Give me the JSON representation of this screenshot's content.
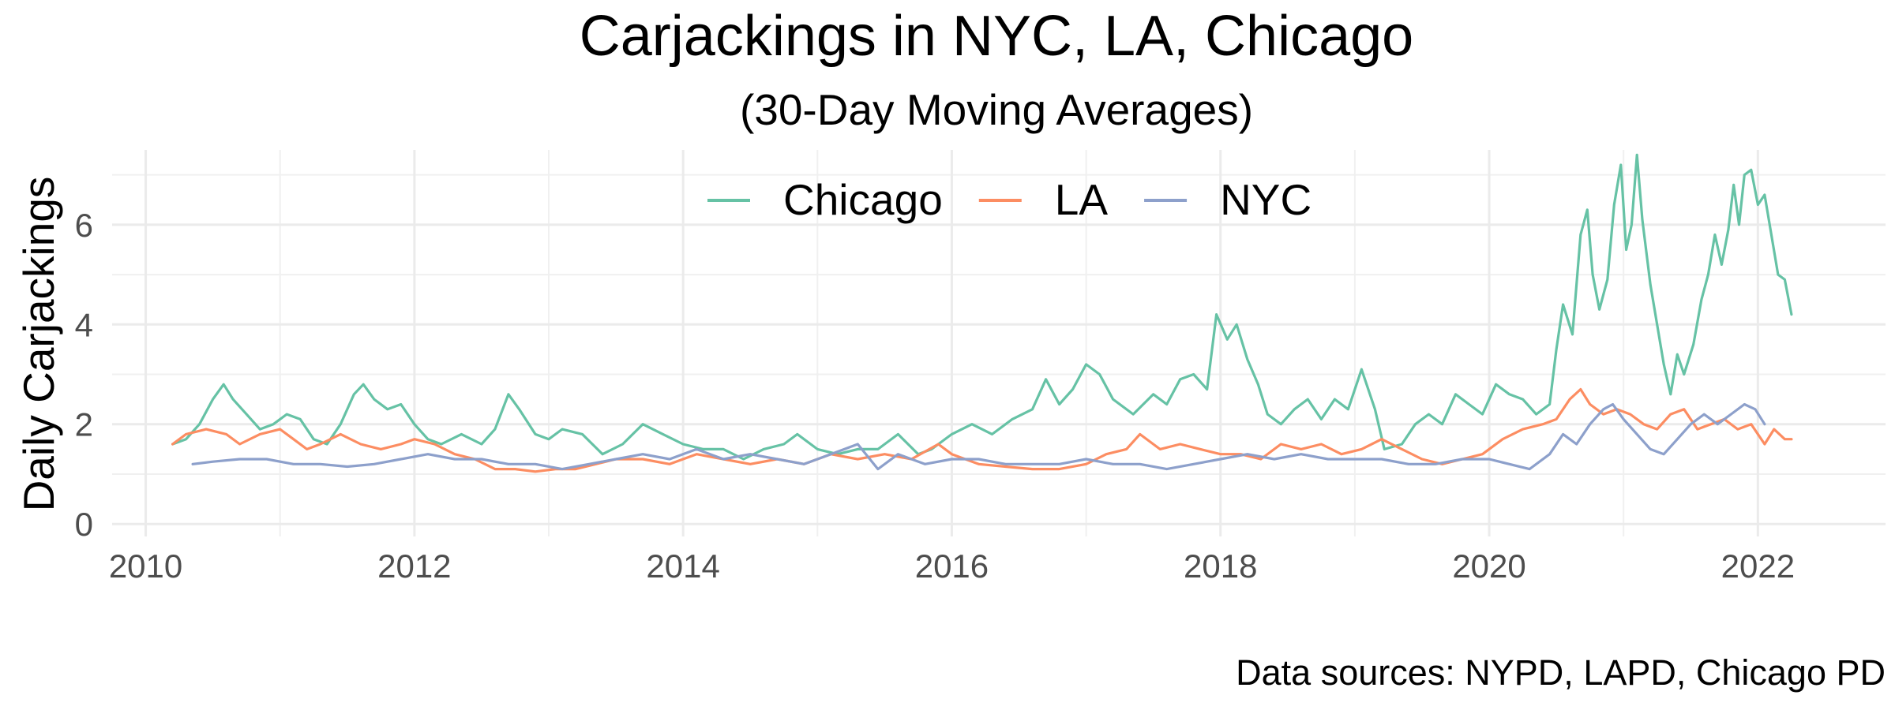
{
  "chart_data": {
    "type": "line",
    "title": "Carjackings in NYC, LA, Chicago",
    "subtitle": "(30-Day Moving Averages)",
    "xlabel": "",
    "ylabel": "Daily Carjackings",
    "caption": "Data sources: NYPD, LAPD, Chicago PD",
    "xlim": [
      2009.75,
      2022.95
    ],
    "ylim": [
      -0.25,
      7.5
    ],
    "x_ticks": [
      2010,
      2012,
      2014,
      2016,
      2018,
      2020,
      2022
    ],
    "y_ticks": [
      0,
      2,
      4,
      6
    ],
    "grid": true,
    "legend_position": "top",
    "series": [
      {
        "name": "Chicago",
        "color": "#66c2a5",
        "points": [
          [
            2010.2,
            1.6
          ],
          [
            2010.3,
            1.7
          ],
          [
            2010.4,
            2.0
          ],
          [
            2010.5,
            2.5
          ],
          [
            2010.58,
            2.8
          ],
          [
            2010.65,
            2.5
          ],
          [
            2010.75,
            2.2
          ],
          [
            2010.85,
            1.9
          ],
          [
            2010.95,
            2.0
          ],
          [
            2011.05,
            2.2
          ],
          [
            2011.15,
            2.1
          ],
          [
            2011.25,
            1.7
          ],
          [
            2011.35,
            1.6
          ],
          [
            2011.45,
            2.0
          ],
          [
            2011.55,
            2.6
          ],
          [
            2011.62,
            2.8
          ],
          [
            2011.7,
            2.5
          ],
          [
            2011.8,
            2.3
          ],
          [
            2011.9,
            2.4
          ],
          [
            2012.0,
            2.0
          ],
          [
            2012.1,
            1.7
          ],
          [
            2012.2,
            1.6
          ],
          [
            2012.35,
            1.8
          ],
          [
            2012.5,
            1.6
          ],
          [
            2012.6,
            1.9
          ],
          [
            2012.7,
            2.6
          ],
          [
            2012.78,
            2.3
          ],
          [
            2012.9,
            1.8
          ],
          [
            2013.0,
            1.7
          ],
          [
            2013.1,
            1.9
          ],
          [
            2013.25,
            1.8
          ],
          [
            2013.4,
            1.4
          ],
          [
            2013.55,
            1.6
          ],
          [
            2013.7,
            2.0
          ],
          [
            2013.85,
            1.8
          ],
          [
            2014.0,
            1.6
          ],
          [
            2014.15,
            1.5
          ],
          [
            2014.3,
            1.5
          ],
          [
            2014.45,
            1.3
          ],
          [
            2014.6,
            1.5
          ],
          [
            2014.75,
            1.6
          ],
          [
            2014.85,
            1.8
          ],
          [
            2015.0,
            1.5
          ],
          [
            2015.15,
            1.4
          ],
          [
            2015.3,
            1.5
          ],
          [
            2015.45,
            1.5
          ],
          [
            2015.6,
            1.8
          ],
          [
            2015.75,
            1.4
          ],
          [
            2015.85,
            1.5
          ],
          [
            2016.0,
            1.8
          ],
          [
            2016.15,
            2.0
          ],
          [
            2016.3,
            1.8
          ],
          [
            2016.45,
            2.1
          ],
          [
            2016.6,
            2.3
          ],
          [
            2016.7,
            2.9
          ],
          [
            2016.8,
            2.4
          ],
          [
            2016.9,
            2.7
          ],
          [
            2017.0,
            3.2
          ],
          [
            2017.1,
            3.0
          ],
          [
            2017.2,
            2.5
          ],
          [
            2017.35,
            2.2
          ],
          [
            2017.5,
            2.6
          ],
          [
            2017.6,
            2.4
          ],
          [
            2017.7,
            2.9
          ],
          [
            2017.8,
            3.0
          ],
          [
            2017.9,
            2.7
          ],
          [
            2017.97,
            4.2
          ],
          [
            2018.05,
            3.7
          ],
          [
            2018.12,
            4.0
          ],
          [
            2018.2,
            3.3
          ],
          [
            2018.28,
            2.8
          ],
          [
            2018.35,
            2.2
          ],
          [
            2018.45,
            2.0
          ],
          [
            2018.55,
            2.3
          ],
          [
            2018.65,
            2.5
          ],
          [
            2018.75,
            2.1
          ],
          [
            2018.85,
            2.5
          ],
          [
            2018.95,
            2.3
          ],
          [
            2019.05,
            3.1
          ],
          [
            2019.15,
            2.3
          ],
          [
            2019.22,
            1.5
          ],
          [
            2019.35,
            1.6
          ],
          [
            2019.45,
            2.0
          ],
          [
            2019.55,
            2.2
          ],
          [
            2019.65,
            2.0
          ],
          [
            2019.75,
            2.6
          ],
          [
            2019.85,
            2.4
          ],
          [
            2019.95,
            2.2
          ],
          [
            2020.05,
            2.8
          ],
          [
            2020.15,
            2.6
          ],
          [
            2020.25,
            2.5
          ],
          [
            2020.35,
            2.2
          ],
          [
            2020.45,
            2.4
          ],
          [
            2020.5,
            3.5
          ],
          [
            2020.55,
            4.4
          ],
          [
            2020.62,
            3.8
          ],
          [
            2020.68,
            5.8
          ],
          [
            2020.73,
            6.3
          ],
          [
            2020.77,
            5.0
          ],
          [
            2020.82,
            4.3
          ],
          [
            2020.88,
            4.9
          ],
          [
            2020.93,
            6.4
          ],
          [
            2020.98,
            7.2
          ],
          [
            2021.02,
            5.5
          ],
          [
            2021.06,
            6.0
          ],
          [
            2021.1,
            7.4
          ],
          [
            2021.14,
            6.1
          ],
          [
            2021.2,
            4.8
          ],
          [
            2021.25,
            4.0
          ],
          [
            2021.3,
            3.2
          ],
          [
            2021.35,
            2.6
          ],
          [
            2021.4,
            3.4
          ],
          [
            2021.45,
            3.0
          ],
          [
            2021.52,
            3.6
          ],
          [
            2021.58,
            4.5
          ],
          [
            2021.63,
            5.0
          ],
          [
            2021.68,
            5.8
          ],
          [
            2021.73,
            5.2
          ],
          [
            2021.78,
            5.9
          ],
          [
            2021.82,
            6.8
          ],
          [
            2021.86,
            6.0
          ],
          [
            2021.9,
            7.0
          ],
          [
            2021.95,
            7.1
          ],
          [
            2022.0,
            6.4
          ],
          [
            2022.05,
            6.6
          ],
          [
            2022.1,
            5.8
          ],
          [
            2022.15,
            5.0
          ],
          [
            2022.2,
            4.9
          ],
          [
            2022.25,
            4.2
          ]
        ]
      },
      {
        "name": "LA",
        "color": "#fc8d62",
        "points": [
          [
            2010.2,
            1.6
          ],
          [
            2010.3,
            1.8
          ],
          [
            2010.45,
            1.9
          ],
          [
            2010.6,
            1.8
          ],
          [
            2010.7,
            1.6
          ],
          [
            2010.85,
            1.8
          ],
          [
            2011.0,
            1.9
          ],
          [
            2011.1,
            1.7
          ],
          [
            2011.2,
            1.5
          ],
          [
            2011.3,
            1.6
          ],
          [
            2011.45,
            1.8
          ],
          [
            2011.6,
            1.6
          ],
          [
            2011.75,
            1.5
          ],
          [
            2011.9,
            1.6
          ],
          [
            2012.0,
            1.7
          ],
          [
            2012.15,
            1.6
          ],
          [
            2012.3,
            1.4
          ],
          [
            2012.45,
            1.3
          ],
          [
            2012.6,
            1.1
          ],
          [
            2012.75,
            1.1
          ],
          [
            2012.9,
            1.05
          ],
          [
            2013.05,
            1.1
          ],
          [
            2013.2,
            1.1
          ],
          [
            2013.35,
            1.2
          ],
          [
            2013.5,
            1.3
          ],
          [
            2013.7,
            1.3
          ],
          [
            2013.9,
            1.2
          ],
          [
            2014.1,
            1.4
          ],
          [
            2014.3,
            1.3
          ],
          [
            2014.5,
            1.2
          ],
          [
            2014.7,
            1.3
          ],
          [
            2014.9,
            1.2
          ],
          [
            2015.1,
            1.4
          ],
          [
            2015.3,
            1.3
          ],
          [
            2015.5,
            1.4
          ],
          [
            2015.7,
            1.3
          ],
          [
            2015.9,
            1.6
          ],
          [
            2016.0,
            1.4
          ],
          [
            2016.2,
            1.2
          ],
          [
            2016.4,
            1.15
          ],
          [
            2016.6,
            1.1
          ],
          [
            2016.8,
            1.1
          ],
          [
            2017.0,
            1.2
          ],
          [
            2017.15,
            1.4
          ],
          [
            2017.3,
            1.5
          ],
          [
            2017.4,
            1.8
          ],
          [
            2017.55,
            1.5
          ],
          [
            2017.7,
            1.6
          ],
          [
            2017.85,
            1.5
          ],
          [
            2018.0,
            1.4
          ],
          [
            2018.15,
            1.4
          ],
          [
            2018.3,
            1.3
          ],
          [
            2018.45,
            1.6
          ],
          [
            2018.6,
            1.5
          ],
          [
            2018.75,
            1.6
          ],
          [
            2018.9,
            1.4
          ],
          [
            2019.05,
            1.5
          ],
          [
            2019.2,
            1.7
          ],
          [
            2019.35,
            1.5
          ],
          [
            2019.5,
            1.3
          ],
          [
            2019.65,
            1.2
          ],
          [
            2019.8,
            1.3
          ],
          [
            2019.95,
            1.4
          ],
          [
            2020.1,
            1.7
          ],
          [
            2020.25,
            1.9
          ],
          [
            2020.4,
            2.0
          ],
          [
            2020.5,
            2.1
          ],
          [
            2020.6,
            2.5
          ],
          [
            2020.68,
            2.7
          ],
          [
            2020.75,
            2.4
          ],
          [
            2020.85,
            2.2
          ],
          [
            2020.95,
            2.3
          ],
          [
            2021.05,
            2.2
          ],
          [
            2021.15,
            2.0
          ],
          [
            2021.25,
            1.9
          ],
          [
            2021.35,
            2.2
          ],
          [
            2021.45,
            2.3
          ],
          [
            2021.55,
            1.9
          ],
          [
            2021.65,
            2.0
          ],
          [
            2021.75,
            2.1
          ],
          [
            2021.85,
            1.9
          ],
          [
            2021.95,
            2.0
          ],
          [
            2022.05,
            1.6
          ],
          [
            2022.12,
            1.9
          ],
          [
            2022.2,
            1.7
          ],
          [
            2022.25,
            1.7
          ]
        ]
      },
      {
        "name": "NYC",
        "color": "#8da0cb",
        "points": [
          [
            2010.35,
            1.2
          ],
          [
            2010.5,
            1.25
          ],
          [
            2010.7,
            1.3
          ],
          [
            2010.9,
            1.3
          ],
          [
            2011.1,
            1.2
          ],
          [
            2011.3,
            1.2
          ],
          [
            2011.5,
            1.15
          ],
          [
            2011.7,
            1.2
          ],
          [
            2011.9,
            1.3
          ],
          [
            2012.1,
            1.4
          ],
          [
            2012.3,
            1.3
          ],
          [
            2012.5,
            1.3
          ],
          [
            2012.7,
            1.2
          ],
          [
            2012.9,
            1.2
          ],
          [
            2013.1,
            1.1
          ],
          [
            2013.3,
            1.2
          ],
          [
            2013.5,
            1.3
          ],
          [
            2013.7,
            1.4
          ],
          [
            2013.9,
            1.3
          ],
          [
            2014.1,
            1.5
          ],
          [
            2014.3,
            1.3
          ],
          [
            2014.5,
            1.4
          ],
          [
            2014.7,
            1.3
          ],
          [
            2014.9,
            1.2
          ],
          [
            2015.1,
            1.4
          ],
          [
            2015.3,
            1.6
          ],
          [
            2015.45,
            1.1
          ],
          [
            2015.6,
            1.4
          ],
          [
            2015.8,
            1.2
          ],
          [
            2016.0,
            1.3
          ],
          [
            2016.2,
            1.3
          ],
          [
            2016.4,
            1.2
          ],
          [
            2016.6,
            1.2
          ],
          [
            2016.8,
            1.2
          ],
          [
            2017.0,
            1.3
          ],
          [
            2017.2,
            1.2
          ],
          [
            2017.4,
            1.2
          ],
          [
            2017.6,
            1.1
          ],
          [
            2017.8,
            1.2
          ],
          [
            2018.0,
            1.3
          ],
          [
            2018.2,
            1.4
          ],
          [
            2018.4,
            1.3
          ],
          [
            2018.6,
            1.4
          ],
          [
            2018.8,
            1.3
          ],
          [
            2019.0,
            1.3
          ],
          [
            2019.2,
            1.3
          ],
          [
            2019.4,
            1.2
          ],
          [
            2019.6,
            1.2
          ],
          [
            2019.8,
            1.3
          ],
          [
            2020.0,
            1.3
          ],
          [
            2020.15,
            1.2
          ],
          [
            2020.3,
            1.1
          ],
          [
            2020.45,
            1.4
          ],
          [
            2020.55,
            1.8
          ],
          [
            2020.65,
            1.6
          ],
          [
            2020.75,
            2.0
          ],
          [
            2020.85,
            2.3
          ],
          [
            2020.92,
            2.4
          ],
          [
            2021.0,
            2.1
          ],
          [
            2021.1,
            1.8
          ],
          [
            2021.2,
            1.5
          ],
          [
            2021.3,
            1.4
          ],
          [
            2021.4,
            1.7
          ],
          [
            2021.5,
            2.0
          ],
          [
            2021.6,
            2.2
          ],
          [
            2021.7,
            2.0
          ],
          [
            2021.8,
            2.2
          ],
          [
            2021.9,
            2.4
          ],
          [
            2021.98,
            2.3
          ],
          [
            2022.05,
            2.0
          ]
        ]
      }
    ]
  }
}
